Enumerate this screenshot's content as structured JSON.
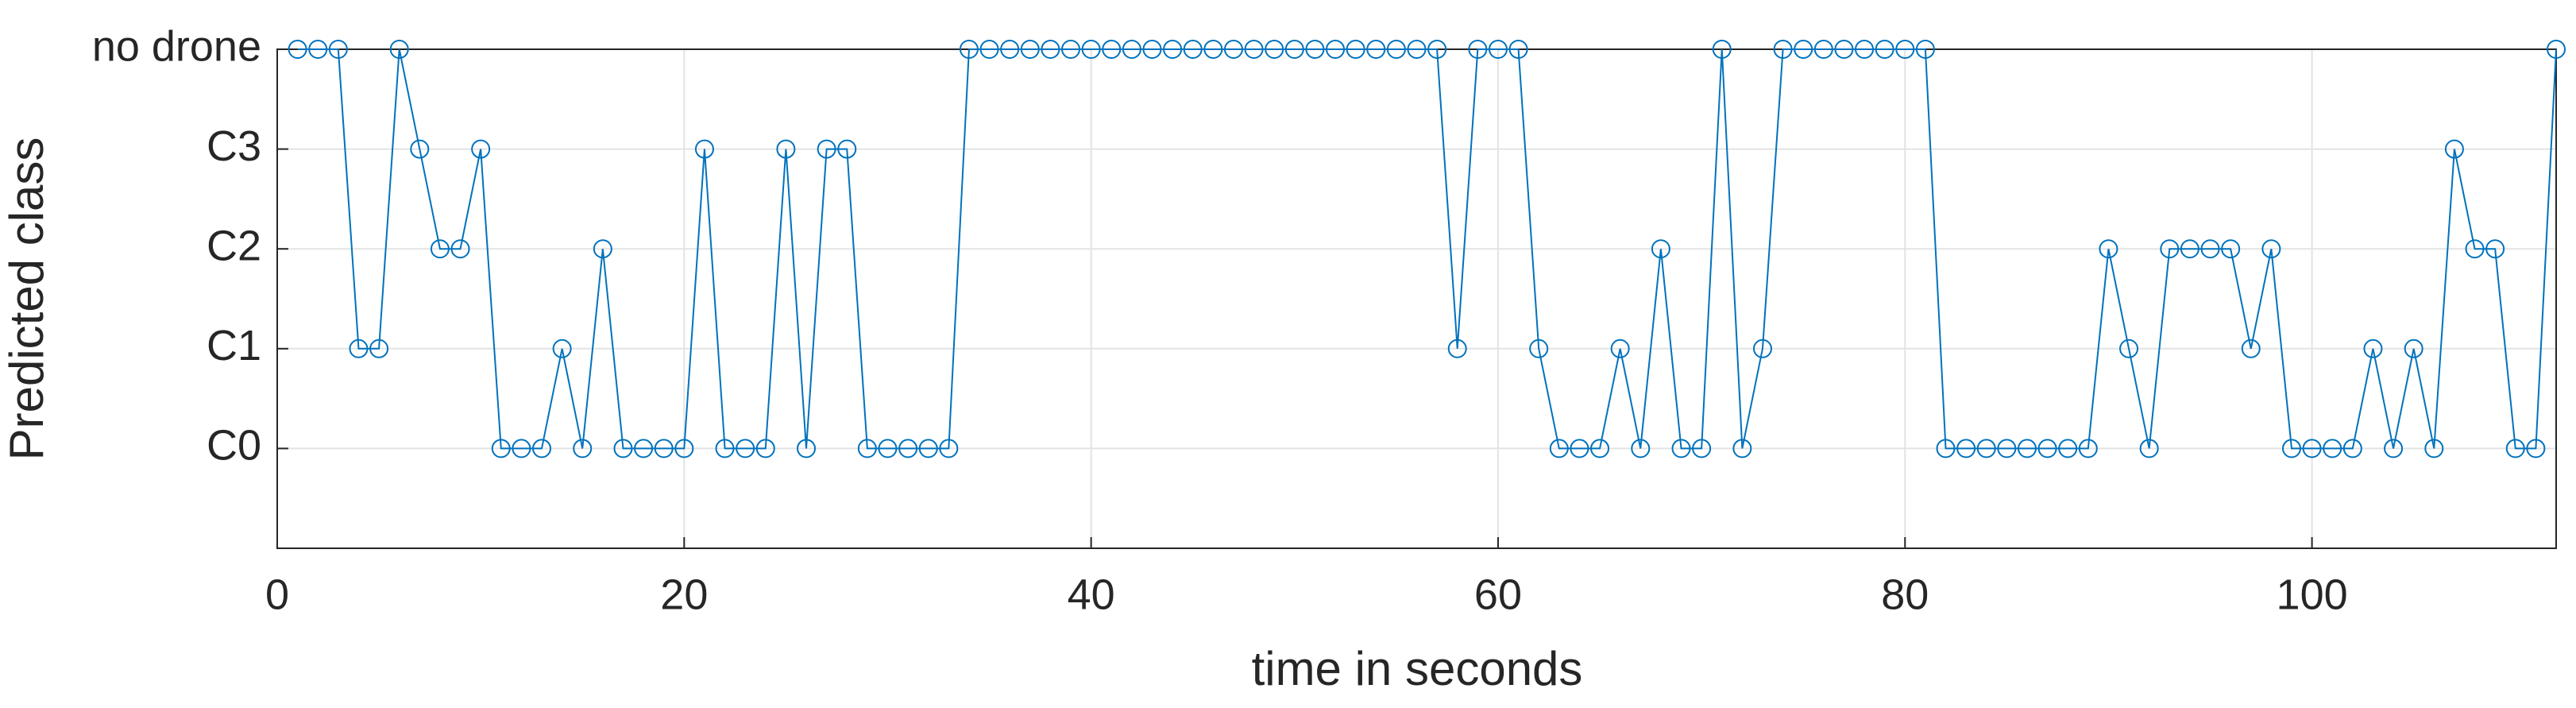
{
  "chart_data": {
    "type": "line",
    "x_label": "time in seconds",
    "y_label": "Predicted class",
    "x": [
      1,
      2,
      3,
      4,
      5,
      6,
      7,
      8,
      9,
      10,
      11,
      12,
      13,
      14,
      15,
      16,
      17,
      18,
      19,
      20,
      21,
      22,
      23,
      24,
      25,
      26,
      27,
      28,
      29,
      30,
      31,
      32,
      33,
      34,
      35,
      36,
      37,
      38,
      39,
      40,
      41,
      42,
      43,
      44,
      45,
      46,
      47,
      48,
      49,
      50,
      51,
      52,
      53,
      54,
      55,
      56,
      57,
      58,
      59,
      60,
      61,
      62,
      63,
      64,
      65,
      66,
      67,
      68,
      69,
      70,
      71,
      72,
      73,
      74,
      75,
      76,
      77,
      78,
      79,
      80,
      81,
      82,
      83,
      84,
      85,
      86,
      87,
      88,
      89,
      90,
      91,
      92,
      93,
      94,
      95,
      96,
      97,
      98,
      99,
      100,
      101,
      102,
      103,
      104,
      105,
      106,
      107,
      108,
      109,
      110,
      111,
      112
    ],
    "series": [
      {
        "color": "#0072bd",
        "marker": "circle",
        "values": [
          4,
          4,
          4,
          1,
          1,
          4,
          3,
          2,
          2,
          3,
          0,
          0,
          0,
          1,
          0,
          2,
          0,
          0,
          0,
          0,
          3,
          0,
          0,
          0,
          3,
          0,
          3,
          3,
          0,
          0,
          0,
          0,
          0,
          4,
          4,
          4,
          4,
          4,
          4,
          4,
          4,
          4,
          4,
          4,
          4,
          4,
          4,
          4,
          4,
          4,
          4,
          4,
          4,
          4,
          4,
          4,
          4,
          1,
          4,
          4,
          4,
          1,
          0,
          0,
          0,
          1,
          0,
          2,
          0,
          0,
          4,
          0,
          1,
          4,
          4,
          4,
          4,
          4,
          4,
          4,
          4,
          0,
          0,
          0,
          0,
          0,
          0,
          0,
          0,
          2,
          1,
          0,
          2,
          2,
          2,
          2,
          1,
          2,
          0,
          0,
          0,
          0,
          1,
          0,
          1,
          0,
          3,
          2,
          2,
          0,
          0,
          4
        ]
      }
    ],
    "xlim": [
      0,
      112
    ],
    "xticks": [
      0,
      20,
      40,
      60,
      80,
      100
    ],
    "ylim": [
      -1,
      4
    ],
    "yticks": [
      {
        "value": 0,
        "label": "C0"
      },
      {
        "value": 1,
        "label": "C1"
      },
      {
        "value": 2,
        "label": "C2"
      },
      {
        "value": 3,
        "label": "C3"
      },
      {
        "value": 4,
        "label": "no drone"
      }
    ],
    "grid": true
  }
}
